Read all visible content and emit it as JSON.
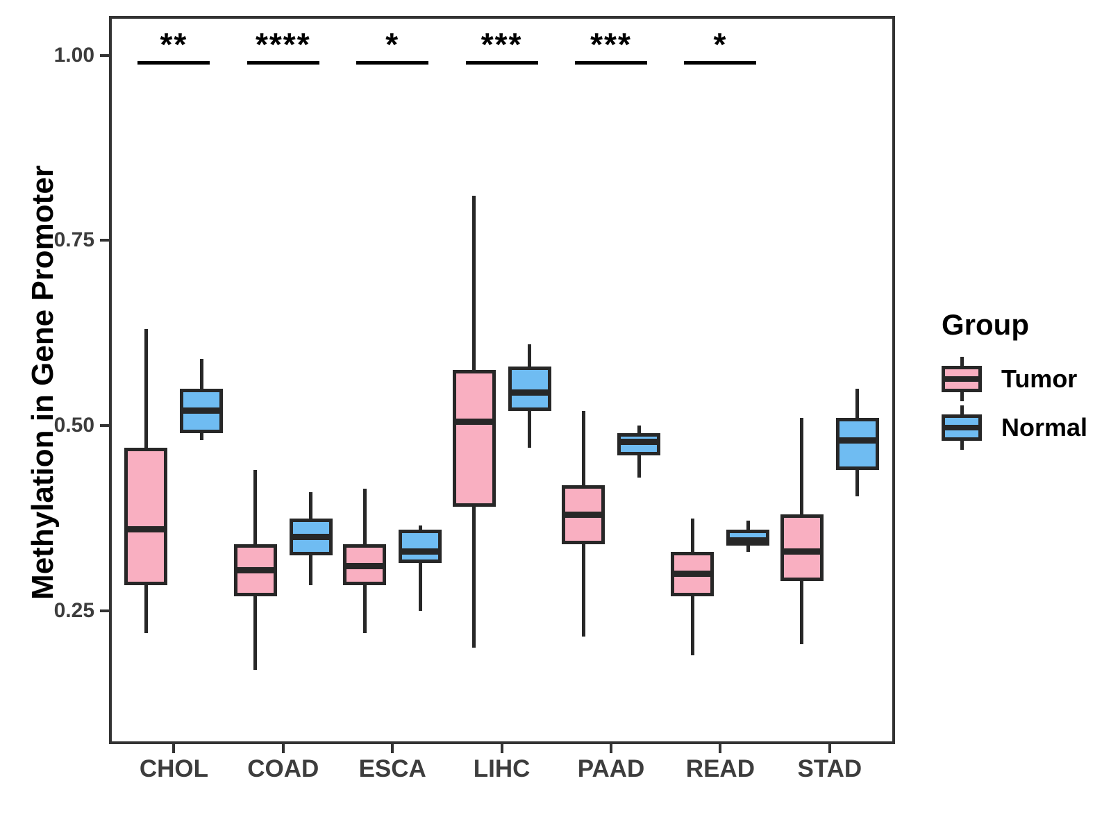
{
  "figure": {
    "y_axis_title": "Methylation in Gene Promoter"
  },
  "legend": {
    "title": "Group",
    "items": [
      {
        "label": "Tumor",
        "color": "#F9AFC1"
      },
      {
        "label": "Normal",
        "color": "#6FBCF2"
      }
    ]
  },
  "style": {
    "box_stroke": "#272727",
    "panel_border": "#333333",
    "tick_text": "#3d3d3d",
    "annotation_color": "#000000"
  },
  "chart_data": {
    "type": "boxplot",
    "title": "",
    "xlabel": "",
    "ylabel": "Methylation in Gene Promoter",
    "grid": false,
    "legend_position": "right",
    "categories": [
      "CHOL",
      "COAD",
      "ESCA",
      "LIHC",
      "PAAD",
      "READ",
      "STAD"
    ],
    "ylim": [
      0.07,
      1.053
    ],
    "yticks": [
      {
        "value": 0.25,
        "label": "0.25"
      },
      {
        "value": 0.5,
        "label": "0.50"
      },
      {
        "value": 0.75,
        "label": "0.75"
      },
      {
        "value": 1.0,
        "label": "1.00"
      }
    ],
    "series": [
      {
        "name": "Tumor",
        "color": "#F9AFC1",
        "boxes": [
          {
            "min": 0.22,
            "q1": 0.285,
            "med": 0.36,
            "q3": 0.47,
            "max": 0.63
          },
          {
            "min": 0.17,
            "q1": 0.27,
            "med": 0.305,
            "q3": 0.34,
            "max": 0.44
          },
          {
            "min": 0.22,
            "q1": 0.285,
            "med": 0.31,
            "q3": 0.34,
            "max": 0.415
          },
          {
            "min": 0.2,
            "q1": 0.39,
            "med": 0.505,
            "q3": 0.575,
            "max": 0.81
          },
          {
            "min": 0.215,
            "q1": 0.34,
            "med": 0.38,
            "q3": 0.42,
            "max": 0.52
          },
          {
            "min": 0.19,
            "q1": 0.27,
            "med": 0.3,
            "q3": 0.33,
            "max": 0.375
          },
          {
            "min": 0.205,
            "q1": 0.29,
            "med": 0.33,
            "q3": 0.38,
            "max": 0.51
          }
        ]
      },
      {
        "name": "Normal",
        "color": "#6FBCF2",
        "boxes": [
          {
            "min": 0.48,
            "q1": 0.49,
            "med": 0.52,
            "q3": 0.55,
            "max": 0.59
          },
          {
            "min": 0.285,
            "q1": 0.325,
            "med": 0.35,
            "q3": 0.375,
            "max": 0.41
          },
          {
            "min": 0.25,
            "q1": 0.315,
            "med": 0.33,
            "q3": 0.36,
            "max": 0.365
          },
          {
            "min": 0.47,
            "q1": 0.52,
            "med": 0.545,
            "q3": 0.58,
            "max": 0.61
          },
          {
            "min": 0.43,
            "q1": 0.46,
            "med": 0.478,
            "q3": 0.49,
            "max": 0.5
          },
          {
            "min": 0.33,
            "q1": 0.338,
            "med": 0.345,
            "q3": 0.36,
            "max": 0.372
          },
          {
            "min": 0.405,
            "q1": 0.44,
            "med": 0.48,
            "q3": 0.51,
            "max": 0.55
          }
        ]
      }
    ],
    "significance": [
      {
        "category": "CHOL",
        "label": "**"
      },
      {
        "category": "COAD",
        "label": "****"
      },
      {
        "category": "ESCA",
        "label": "*"
      },
      {
        "category": "LIHC",
        "label": "***"
      },
      {
        "category": "PAAD",
        "label": "***"
      },
      {
        "category": "READ",
        "label": "*"
      }
    ]
  }
}
